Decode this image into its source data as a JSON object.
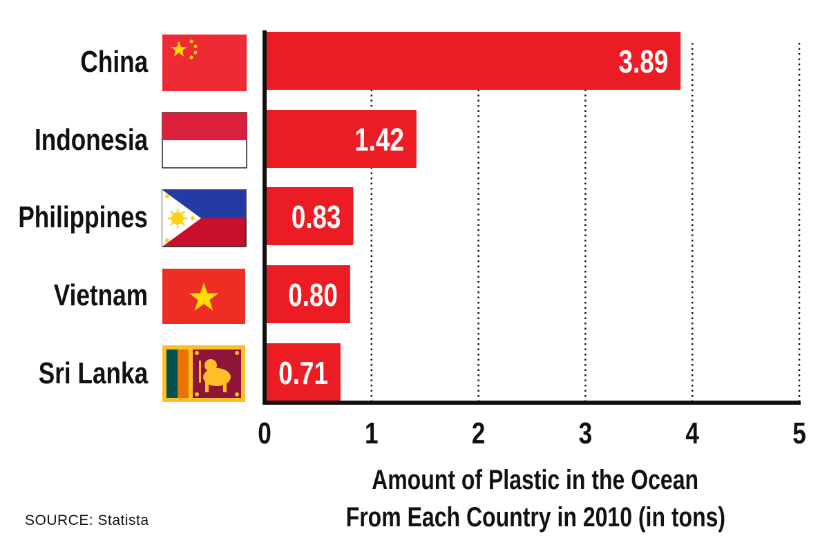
{
  "chart_data": {
    "type": "bar",
    "orientation": "horizontal",
    "categories": [
      "China",
      "Indonesia",
      "Philippines",
      "Vietnam",
      "Sri Lanka"
    ],
    "values": [
      3.89,
      1.42,
      0.83,
      0.8,
      0.71
    ],
    "value_labels": [
      "3.89",
      "1.42",
      "0.83",
      "0.80",
      "0.71"
    ],
    "xlabel_lines": [
      "Amount of Plastic in the Ocean",
      "From Each Country in 2010 (in tons)"
    ],
    "xlim": [
      0,
      5
    ],
    "xticks": [
      "0",
      "1",
      "2",
      "3",
      "4",
      "5"
    ],
    "bar_color": "#ec1c24",
    "grid": "vertical dotted",
    "flags": [
      "china-flag",
      "indonesia-flag",
      "philippines-flag",
      "vietnam-flag",
      "sri-lanka-flag"
    ]
  },
  "source": "SOURCE: Statista"
}
